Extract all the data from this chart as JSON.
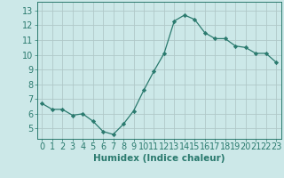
{
  "x": [
    0,
    1,
    2,
    3,
    4,
    5,
    6,
    7,
    8,
    9,
    10,
    11,
    12,
    13,
    14,
    15,
    16,
    17,
    18,
    19,
    20,
    21,
    22,
    23
  ],
  "y": [
    6.7,
    6.3,
    6.3,
    5.9,
    6.0,
    5.5,
    4.8,
    4.6,
    5.3,
    6.2,
    7.6,
    8.9,
    10.1,
    12.3,
    12.7,
    12.4,
    11.5,
    11.1,
    11.1,
    10.6,
    10.5,
    10.1,
    10.1,
    9.5
  ],
  "line_color": "#2a7a6e",
  "marker": "D",
  "marker_size": 2.2,
  "xlabel": "Humidex (Indice chaleur)",
  "ylabel_ticks": [
    5,
    6,
    7,
    8,
    9,
    10,
    11,
    12,
    13
  ],
  "ylim": [
    4.3,
    13.6
  ],
  "xlim": [
    -0.5,
    23.5
  ],
  "bg_color": "#cce8e8",
  "grid_color": "#b0c8c8",
  "xlabel_fontsize": 7.5,
  "tick_fontsize": 7,
  "tick_color": "#2a7a6e"
}
